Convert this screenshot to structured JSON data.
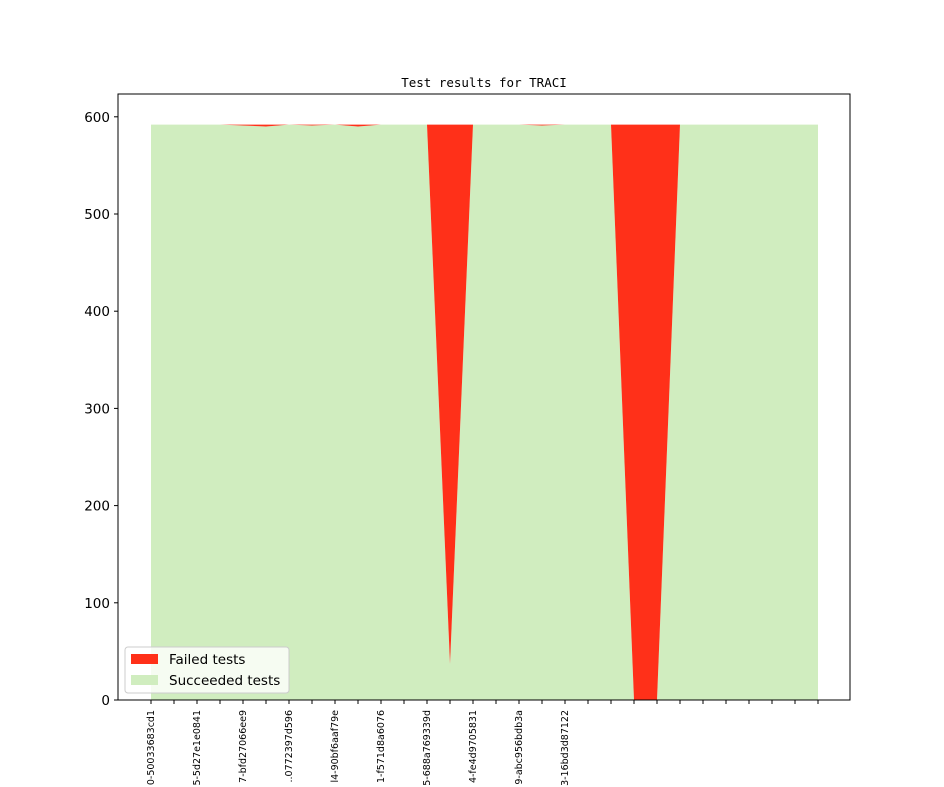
{
  "chart_data": {
    "type": "area",
    "title": "Test results for TRACI",
    "xlabel": "",
    "ylabel": "",
    "ylim": [
      0,
      620
    ],
    "yticks": [
      0,
      100,
      200,
      300,
      400,
      500,
      600
    ],
    "ytick_labels": [
      "0",
      "100",
      "200",
      "300",
      "400",
      "500",
      "600"
    ],
    "x_tick_labels": [
      "0-50033683cd1",
      "",
      "5-5d27e1e0841",
      "",
      "7-bfd27066ee9",
      "",
      "..0772397d596",
      "",
      "l4-90bf6aaf79e",
      "",
      "1-f571d8a6076",
      "",
      "5-688a769339d",
      "",
      "4-fe4d9705831",
      "",
      "9-abc956bdb3a",
      "",
      "3-16bd3d87122",
      "",
      ""
    ],
    "stacked": true,
    "series": [
      {
        "name": "Succeeded tests",
        "color": "#d0edbf",
        "values": [
          592,
          592,
          592,
          592,
          591,
          590,
          592,
          591,
          592,
          590,
          592,
          592,
          592,
          37,
          592,
          592,
          592,
          591,
          592,
          592,
          592,
          0,
          0,
          592,
          592,
          592,
          592,
          592,
          592,
          592
        ]
      },
      {
        "name": "Failed tests",
        "color": "#ff3019",
        "values": [
          0,
          0,
          0,
          0,
          1,
          2,
          0,
          1,
          0,
          2,
          0,
          0,
          0,
          555,
          0,
          0,
          0,
          1,
          0,
          0,
          0,
          592,
          592,
          0,
          0,
          0,
          0,
          0,
          0,
          0
        ]
      }
    ],
    "n_points": 30,
    "legend": {
      "placement": "lower-left",
      "entries": [
        "Failed tests",
        "Succeeded tests"
      ]
    },
    "grid": false
  }
}
